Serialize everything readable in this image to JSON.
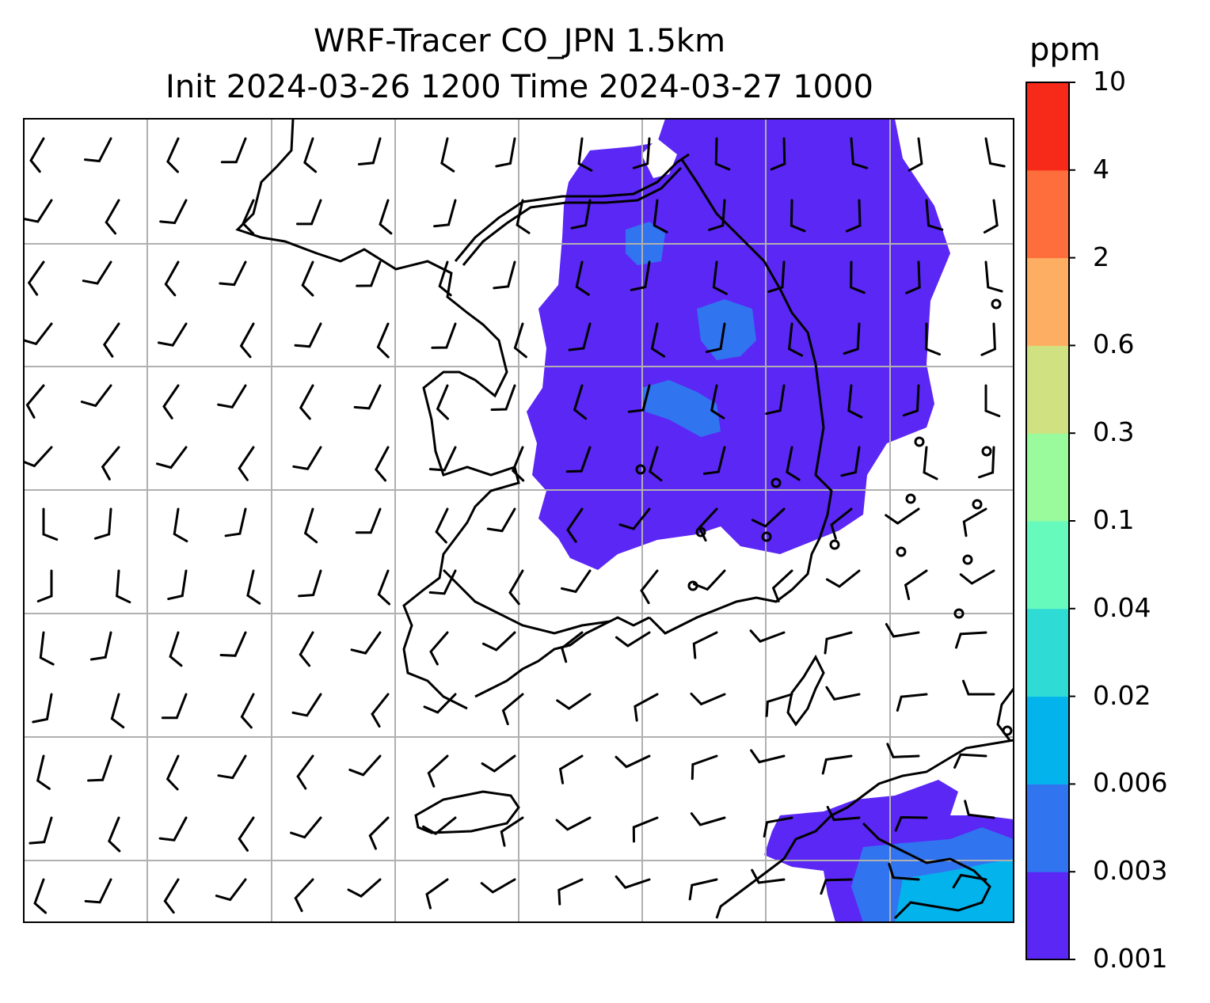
{
  "title_line1": "WRF-Tracer CO_JPN 1.5km",
  "title_line2": "Init 2024-03-26 1200 Time 2024-03-27 1000",
  "colorbar": {
    "unit": "ppm",
    "levels": [
      "0.001",
      "0.003",
      "0.006",
      "0.02",
      "0.04",
      "0.1",
      "0.3",
      "0.6",
      "2",
      "4",
      "10"
    ],
    "colors": [
      "#5b27f5",
      "#3174f0",
      "#03b3ec",
      "#2edcd5",
      "#66fbbd",
      "#9afb9c",
      "#d0e181",
      "#feae62",
      "#fe6d3c",
      "#f72919"
    ]
  },
  "map_style": {
    "grid_color": "#b0b0b0",
    "coast_color": "#000000"
  }
}
